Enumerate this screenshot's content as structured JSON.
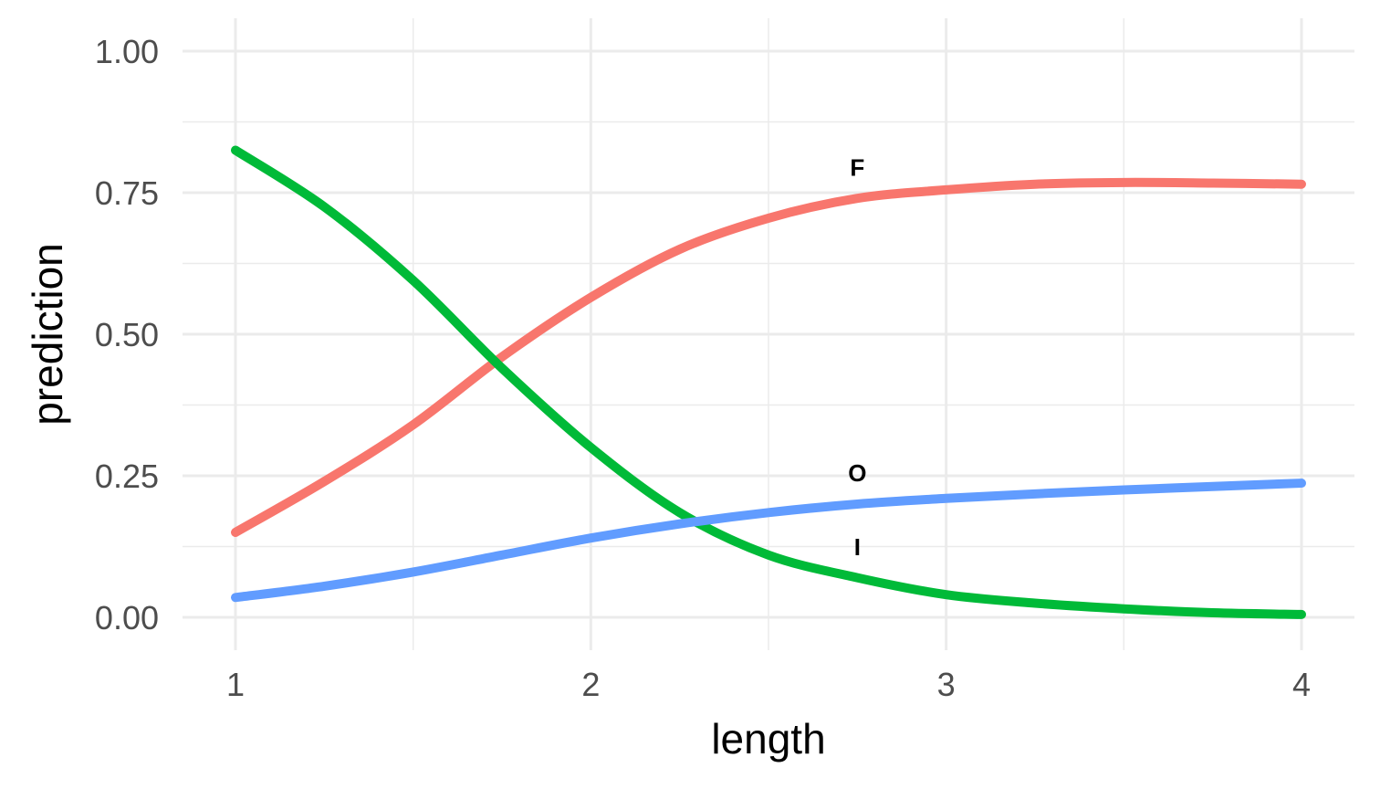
{
  "chart_data": {
    "type": "line",
    "xlabel": "length",
    "ylabel": "prediction",
    "xlim": [
      1,
      4
    ],
    "ylim": [
      0,
      1
    ],
    "x_ticks": [
      1,
      2,
      3,
      4
    ],
    "x_tick_labels": [
      "1",
      "2",
      "3",
      "4"
    ],
    "y_ticks": [
      0,
      0.25,
      0.5,
      0.75,
      1.0
    ],
    "y_tick_labels": [
      "0.00",
      "0.25",
      "0.50",
      "0.75",
      "1.00"
    ],
    "grid": true,
    "legend": "none",
    "series": [
      {
        "name": "F",
        "color": "#F8766D",
        "label_at": [
          2.75,
          0.78
        ],
        "x": [
          1.0,
          1.25,
          1.5,
          1.75,
          2.0,
          2.25,
          2.5,
          2.75,
          3.0,
          3.25,
          3.5,
          3.75,
          4.0
        ],
        "values": [
          0.15,
          0.24,
          0.34,
          0.46,
          0.565,
          0.65,
          0.705,
          0.74,
          0.755,
          0.765,
          0.768,
          0.767,
          0.765
        ]
      },
      {
        "name": "I",
        "color": "#00BA38",
        "label_at": [
          2.75,
          0.11
        ],
        "x": [
          1.0,
          1.25,
          1.5,
          1.75,
          2.0,
          2.25,
          2.5,
          2.75,
          3.0,
          3.25,
          3.5,
          3.75,
          4.0
        ],
        "values": [
          0.825,
          0.725,
          0.595,
          0.44,
          0.3,
          0.185,
          0.11,
          0.07,
          0.04,
          0.025,
          0.015,
          0.008,
          0.005
        ]
      },
      {
        "name": "O",
        "color": "#619CFF",
        "label_at": [
          2.75,
          0.24
        ],
        "x": [
          1.0,
          1.25,
          1.5,
          1.75,
          2.0,
          2.25,
          2.5,
          2.75,
          3.0,
          3.25,
          3.5,
          3.75,
          4.0
        ],
        "values": [
          0.035,
          0.055,
          0.08,
          0.11,
          0.14,
          0.165,
          0.185,
          0.2,
          0.21,
          0.218,
          0.225,
          0.231,
          0.237
        ]
      }
    ]
  }
}
